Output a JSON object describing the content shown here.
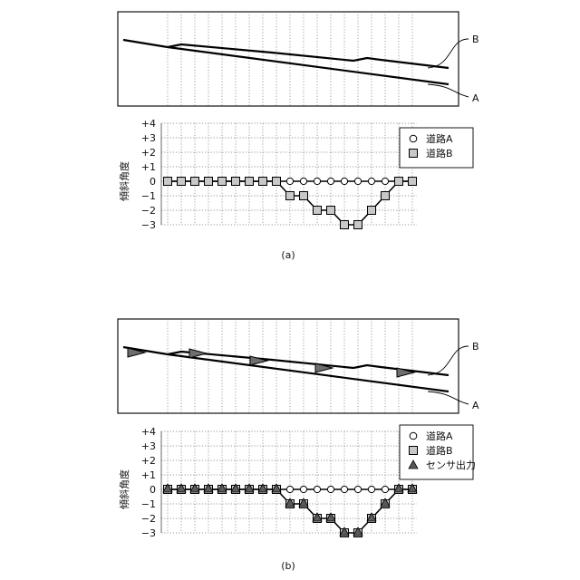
{
  "chart_data": [
    {
      "type": "line",
      "caption": "(a)",
      "road_labels": [
        "B",
        "A"
      ],
      "ylabel": "傾斜角度",
      "ylim": [
        -3,
        4
      ],
      "y_ticks": [
        "+4",
        "+3",
        "+2",
        "+1",
        "0",
        "−1",
        "−2",
        "−3"
      ],
      "legend": [
        "道路A",
        "道路B"
      ],
      "x": [
        1,
        2,
        3,
        4,
        5,
        6,
        7,
        8,
        9,
        10,
        11,
        12,
        13,
        14,
        15,
        16,
        17,
        18,
        19
      ],
      "series": [
        {
          "name": "道路A",
          "marker": "circle",
          "values": [
            0,
            0,
            0,
            0,
            0,
            0,
            0,
            0,
            0,
            0,
            0,
            0,
            0,
            0,
            0,
            0,
            0,
            0,
            0
          ]
        },
        {
          "name": "道路B",
          "marker": "square",
          "values": [
            0,
            0,
            0,
            0,
            0,
            0,
            0,
            0,
            0,
            -1,
            -1,
            -2,
            -2,
            -3,
            -3,
            -2,
            -1,
            0,
            0
          ]
        }
      ]
    },
    {
      "type": "line",
      "caption": "(b)",
      "road_labels": [
        "B",
        "A"
      ],
      "ylabel": "傾斜角度",
      "ylim": [
        -3,
        4
      ],
      "y_ticks": [
        "+4",
        "+3",
        "+2",
        "+1",
        "0",
        "−1",
        "−2",
        "−3"
      ],
      "legend": [
        "道路A",
        "道路B",
        "センサ出力"
      ],
      "x": [
        1,
        2,
        3,
        4,
        5,
        6,
        7,
        8,
        9,
        10,
        11,
        12,
        13,
        14,
        15,
        16,
        17,
        18,
        19
      ],
      "series": [
        {
          "name": "道路A",
          "marker": "circle",
          "values": [
            0,
            0,
            0,
            0,
            0,
            0,
            0,
            0,
            0,
            0,
            0,
            0,
            0,
            0,
            0,
            0,
            0,
            0,
            0
          ]
        },
        {
          "name": "道路B",
          "marker": "square",
          "values": [
            0,
            0,
            0,
            0,
            0,
            0,
            0,
            0,
            0,
            -1,
            -1,
            -2,
            -2,
            -3,
            -3,
            -2,
            -1,
            0,
            0
          ]
        },
        {
          "name": "センサ出力",
          "marker": "triangle",
          "values": [
            0,
            0,
            0,
            0,
            0,
            0,
            0,
            0,
            0,
            -1,
            -1,
            -2,
            -2,
            -3,
            -3,
            -2,
            -1,
            0,
            0
          ]
        }
      ]
    }
  ]
}
